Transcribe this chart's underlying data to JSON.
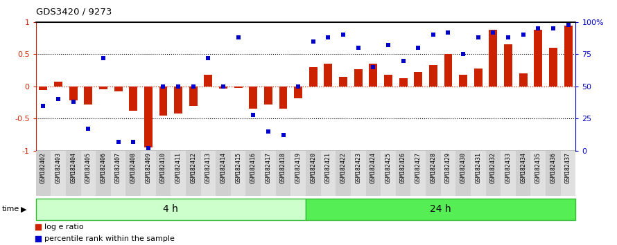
{
  "title": "GDS3420 / 9273",
  "samples": [
    "GSM182402",
    "GSM182403",
    "GSM182404",
    "GSM182405",
    "GSM182406",
    "GSM182407",
    "GSM182408",
    "GSM182409",
    "GSM182410",
    "GSM182411",
    "GSM182412",
    "GSM182413",
    "GSM182414",
    "GSM182415",
    "GSM182416",
    "GSM182417",
    "GSM182418",
    "GSM182419",
    "GSM182420",
    "GSM182421",
    "GSM182422",
    "GSM182423",
    "GSM182424",
    "GSM182425",
    "GSM182426",
    "GSM182427",
    "GSM182428",
    "GSM182429",
    "GSM182430",
    "GSM182431",
    "GSM182432",
    "GSM182433",
    "GSM182434",
    "GSM182435",
    "GSM182436",
    "GSM182437"
  ],
  "log_ratio": [
    -0.06,
    0.07,
    -0.22,
    -0.28,
    -0.05,
    -0.08,
    -0.38,
    -0.95,
    -0.45,
    -0.42,
    -0.3,
    0.18,
    -0.03,
    -0.02,
    -0.35,
    -0.28,
    -0.35,
    -0.18,
    0.3,
    0.35,
    0.15,
    0.27,
    0.35,
    0.18,
    0.13,
    0.22,
    0.33,
    0.5,
    0.18,
    0.28,
    0.88,
    0.65,
    0.2,
    0.88,
    0.6,
    0.95
  ],
  "percentile": [
    35,
    40,
    38,
    17,
    72,
    7,
    7,
    2,
    50,
    50,
    50,
    72,
    50,
    88,
    28,
    15,
    12,
    50,
    85,
    88,
    90,
    80,
    65,
    82,
    70,
    80,
    90,
    92,
    75,
    88,
    92,
    88,
    90,
    95,
    95,
    98
  ],
  "group1_label": "4 h",
  "group2_label": "24 h",
  "group1_count": 18,
  "bar_color": "#cc2200",
  "dot_color": "#0000cc",
  "group1_color": "#ccffcc",
  "group2_color": "#55ee55",
  "group_border_color": "#33bb33",
  "tick_bg_even": "#d0d0d0",
  "tick_bg_odd": "#e0e0e0",
  "bar_sep_color": "#000000",
  "ylim_left": [
    -1.0,
    1.0
  ],
  "ylim_right": [
    0,
    100
  ],
  "yticks_left": [
    -1.0,
    -0.5,
    0.0,
    0.5,
    1.0
  ],
  "ytick_labels_left": [
    "-1",
    "-0.5",
    "0",
    "0.5",
    "1"
  ],
  "yticks_right": [
    0,
    25,
    50,
    75,
    100
  ],
  "ytick_labels_right": [
    "0",
    "25",
    "50",
    "75",
    "100%"
  ],
  "hlines_black": [
    -0.5,
    0.5
  ],
  "hline_red": 0.0
}
